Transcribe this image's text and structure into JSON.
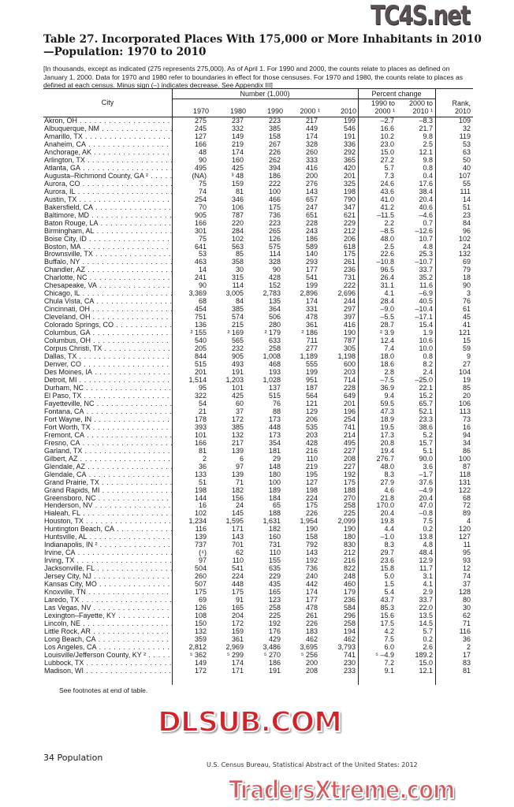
{
  "title": "Table 27. Incorporated Places With 175,000 or More Inhabitants in 2010—Population: 1970 to 2010",
  "headnote": "[In thousands, except as indicated (275 represents 275,000). As of April 1. For 1990 and 2000, the counts relate to places as defined on January 1, 2000. Data for 1970 and 1980 refer to boundaries in effect for those censuses. For 1970 and 1980, the counts relate to places as defined at each census. Minus sign (–) indicates decrease. See Appendix III]",
  "header": {
    "city": "City",
    "number_group": "Number (1,000)",
    "percent_group": "Percent change",
    "columns": [
      "1970",
      "1980",
      "1990",
      "2000 ¹",
      "2010",
      "1990 to",
      "2000 ¹",
      "2000 to",
      "2010 ¹",
      "Rank,",
      "2010"
    ]
  },
  "rows": [
    [
      "Akron, OH",
      "275",
      "237",
      "223",
      "217",
      "199",
      "–2.7",
      "–8.3",
      "109"
    ],
    [
      "Albuquerque, NM",
      "245",
      "332",
      "385",
      "449",
      "546",
      "16.6",
      "21.7",
      "32"
    ],
    [
      "Amarillo, TX",
      "127",
      "149",
      "158",
      "174",
      "191",
      "10.2",
      "9.8",
      "119"
    ],
    [
      "Anaheim, CA",
      "166",
      "219",
      "267",
      "328",
      "336",
      "23.0",
      "2.5",
      "53"
    ],
    [
      "Anchorage, AK",
      "48",
      "174",
      "226",
      "260",
      "292",
      "15.0",
      "12.1",
      "63"
    ],
    [
      "Arlington, TX",
      "90",
      "160",
      "262",
      "333",
      "365",
      "27.2",
      "9.8",
      "50"
    ],
    [
      "Atlanta, GA",
      "495",
      "425",
      "394",
      "416",
      "420",
      "5.7",
      "0.8",
      "40"
    ],
    [
      "Augusta–Richmond County, GA ²",
      "(NA)",
      "³ 48",
      "186",
      "200",
      "201",
      "7.3",
      "0.4",
      "107"
    ],
    [
      "Aurora, CO",
      "75",
      "159",
      "222",
      "276",
      "325",
      "24.6",
      "17.6",
      "55"
    ],
    [
      "Aurora, IL",
      "74",
      "81",
      "100",
      "143",
      "198",
      "43.6",
      "38.4",
      "111"
    ],
    [
      "Austin, TX",
      "254",
      "346",
      "466",
      "657",
      "790",
      "41.0",
      "20.4",
      "14"
    ],
    [
      "Bakersfield, CA",
      "70",
      "106",
      "175",
      "247",
      "347",
      "41.2",
      "40.6",
      "51"
    ],
    [
      "Baltimore, MD",
      "905",
      "787",
      "736",
      "651",
      "621",
      "–11.5",
      "–4.6",
      "23"
    ],
    [
      "Baton Rouge, LA",
      "166",
      "220",
      "223",
      "228",
      "229",
      "2.2",
      "0.7",
      "84"
    ],
    [
      "Birmingham, AL",
      "301",
      "284",
      "265",
      "243",
      "212",
      "–8.5",
      "–12.6",
      "96"
    ],
    [
      "Boise City, ID",
      "75",
      "102",
      "126",
      "186",
      "206",
      "48.0",
      "10.7",
      "102"
    ],
    [
      "Boston, MA",
      "641",
      "563",
      "575",
      "589",
      "618",
      "2.5",
      "4.8",
      "24"
    ],
    [
      "Brownsville, TX",
      "53",
      "85",
      "114",
      "140",
      "175",
      "22.6",
      "25.3",
      "132"
    ],
    [
      "Buffalo, NY",
      "463",
      "358",
      "328",
      "293",
      "261",
      "–10.8",
      "–10.7",
      "69"
    ],
    [
      "Chandler, AZ",
      "14",
      "30",
      "90",
      "177",
      "236",
      "96.5",
      "33.7",
      "79"
    ],
    [
      "Charlotte, NC",
      "241",
      "315",
      "428",
      "541",
      "731",
      "26.4",
      "35.2",
      "18"
    ],
    [
      "Chesapeake, VA",
      "90",
      "114",
      "152",
      "199",
      "222",
      "31.1",
      "11.6",
      "90"
    ],
    [
      "Chicago, IL",
      "3,369",
      "3,005",
      "2,783",
      "2,896",
      "2,696",
      "4.1",
      "–6.9",
      "3"
    ],
    [
      "Chula Vista, CA",
      "68",
      "84",
      "135",
      "174",
      "244",
      "28.4",
      "40.5",
      "76"
    ],
    [
      "Cincinnati, OH",
      "454",
      "385",
      "364",
      "331",
      "297",
      "–9.0",
      "–10.4",
      "61"
    ],
    [
      "Cleveland, OH",
      "751",
      "574",
      "506",
      "478",
      "397",
      "–5.5",
      "–17.1",
      "45"
    ],
    [
      "Colorado Springs, CO",
      "136",
      "215",
      "280",
      "361",
      "416",
      "28.7",
      "15.4",
      "41"
    ],
    [
      "Columbus, GA",
      "² 155",
      "² 169",
      "² 179",
      "² 186",
      "190",
      "² 3.9",
      "1.9",
      "121"
    ],
    [
      "Columbus, OH",
      "540",
      "565",
      "633",
      "711",
      "787",
      "12.4",
      "10.6",
      "15"
    ],
    [
      "Corpus Christi, TX",
      "205",
      "232",
      "258",
      "277",
      "305",
      "7.4",
      "10.0",
      "59"
    ],
    [
      "Dallas, TX",
      "844",
      "905",
      "1,008",
      "1,189",
      "1,198",
      "18.0",
      "0.8",
      "9"
    ],
    [
      "Denver, CO",
      "515",
      "493",
      "468",
      "555",
      "600",
      "18.6",
      "8.2",
      "27"
    ],
    [
      "Des Moines, IA",
      "201",
      "191",
      "193",
      "199",
      "203",
      "2.8",
      "2.4",
      "104"
    ],
    [
      "Detroit, MI",
      "1,514",
      "1,203",
      "1,028",
      "951",
      "714",
      "–7.5",
      "–25.0",
      "19"
    ],
    [
      "Durham, NC",
      "95",
      "101",
      "137",
      "187",
      "228",
      "36.9",
      "22.1",
      "85"
    ],
    [
      "El Paso, TX",
      "322",
      "425",
      "515",
      "564",
      "649",
      "9.4",
      "15.2",
      "20"
    ],
    [
      "Fayetteville, NC",
      "54",
      "60",
      "76",
      "121",
      "201",
      "59.5",
      "65.7",
      "106"
    ],
    [
      "Fontana, CA",
      "21",
      "37",
      "88",
      "129",
      "196",
      "47.3",
      "52.1",
      "113"
    ],
    [
      "Fort Wayne, IN",
      "178",
      "172",
      "173",
      "206",
      "254",
      "18.9",
      "23.3",
      "73"
    ],
    [
      "Fort Worth, TX",
      "393",
      "385",
      "448",
      "535",
      "741",
      "19.5",
      "38.6",
      "16"
    ],
    [
      "Fremont, CA",
      "101",
      "132",
      "173",
      "203",
      "214",
      "17.3",
      "5.2",
      "94"
    ],
    [
      "Fresno, CA",
      "166",
      "217",
      "354",
      "428",
      "495",
      "20.8",
      "15.7",
      "34"
    ],
    [
      "Garland, TX",
      "81",
      "139",
      "181",
      "216",
      "227",
      "19.4",
      "5.1",
      "86"
    ],
    [
      "Gilbert, AZ",
      "2",
      "6",
      "29",
      "110",
      "208",
      "276.7",
      "90.0",
      "100"
    ],
    [
      "Glendale, AZ",
      "36",
      "97",
      "148",
      "219",
      "227",
      "48.0",
      "3.6",
      "87"
    ],
    [
      "Glendale, CA",
      "133",
      "139",
      "180",
      "195",
      "192",
      "8.3",
      "–1.7",
      "118"
    ],
    [
      "Grand Prairie, TX",
      "51",
      "71",
      "100",
      "127",
      "175",
      "27.9",
      "37.6",
      "131"
    ],
    [
      "Grand Rapids, MI",
      "198",
      "182",
      "189",
      "198",
      "188",
      "4.6",
      "–4.9",
      "122"
    ],
    [
      "Greensboro, NC",
      "144",
      "156",
      "184",
      "224",
      "270",
      "21.8",
      "20.4",
      "68"
    ],
    [
      "Henderson, NV",
      "16",
      "24",
      "65",
      "175",
      "258",
      "170.0",
      "47.0",
      "72"
    ],
    [
      "Hialeah, FL",
      "102",
      "145",
      "188",
      "226",
      "225",
      "20.4",
      "–0.8",
      "89"
    ],
    [
      "Houston, TX",
      "1,234",
      "1,595",
      "1,631",
      "1,954",
      "2,099",
      "19.8",
      "7.5",
      "4"
    ],
    [
      "Huntington Beach, CA",
      "116",
      "171",
      "182",
      "190",
      "190",
      "4.4",
      "0.2",
      "120"
    ],
    [
      "Huntsville, AL",
      "139",
      "143",
      "160",
      "158",
      "180",
      "–1.0",
      "13.8",
      "127"
    ],
    [
      "Indianapolis, IN ²",
      "737",
      "701",
      "731",
      "792",
      "830",
      "8.3",
      "4.8",
      "11"
    ],
    [
      "Irvine, CA",
      "(⁴)",
      "62",
      "110",
      "143",
      "212",
      "29.7",
      "48.4",
      "95"
    ],
    [
      "Irving, TX",
      "97",
      "110",
      "155",
      "192",
      "216",
      "23.6",
      "12.9",
      "93"
    ],
    [
      "Jacksonville, FL",
      "504",
      "541",
      "635",
      "736",
      "822",
      "15.8",
      "11.7",
      "12"
    ],
    [
      "Jersey City, NJ",
      "260",
      "224",
      "229",
      "240",
      "248",
      "5.0",
      "3.1",
      "74"
    ],
    [
      "Kansas City, MO",
      "507",
      "448",
      "435",
      "442",
      "460",
      "1.5",
      "4.1",
      "37"
    ],
    [
      "Knoxville, TN",
      "175",
      "175",
      "165",
      "174",
      "179",
      "5.4",
      "2.9",
      "128"
    ],
    [
      "Laredo, TX",
      "69",
      "91",
      "123",
      "177",
      "236",
      "43.7",
      "33.7",
      "80"
    ],
    [
      "Las Vegas, NV",
      "126",
      "165",
      "258",
      "478",
      "584",
      "85.3",
      "22.0",
      "30"
    ],
    [
      "Lexington–Fayette, KY",
      "108",
      "204",
      "225",
      "261",
      "296",
      "15.6",
      "13.5",
      "62"
    ],
    [
      "Lincoln, NE",
      "150",
      "172",
      "192",
      "226",
      "258",
      "17.5",
      "14.5",
      "71"
    ],
    [
      "Little Rock, AR",
      "132",
      "159",
      "176",
      "183",
      "194",
      "4.2",
      "5.7",
      "116"
    ],
    [
      "Long Beach, CA",
      "359",
      "361",
      "429",
      "462",
      "462",
      "7.5",
      "0.2",
      "36"
    ],
    [
      "Los Angeles, CA",
      "2,812",
      "2,969",
      "3,486",
      "3,695",
      "3,793",
      "6.0",
      "2.6",
      "2"
    ],
    [
      "Louisville/Jefferson County, KY ²",
      "⁵ 362",
      "⁵ 299",
      "⁵ 270",
      "⁵ 256",
      "741",
      "⁵ –4.9",
      "189.2",
      "17"
    ],
    [
      "Lubbock, TX",
      "149",
      "174",
      "186",
      "200",
      "230",
      "7.2",
      "15.0",
      "83"
    ],
    [
      "Madison, WI",
      "172",
      "171",
      "191",
      "208",
      "233",
      "9.1",
      "12.1",
      "81"
    ]
  ],
  "footnote_ref": "See footnotes at end of table.",
  "footer": {
    "page": "34  Population",
    "source": "U.S. Census Bureau, Statistical Abstract of the United States: 2012"
  },
  "watermarks": [
    "TC4S.net",
    "DLSUB.COM",
    "TradersXtreme.com"
  ]
}
